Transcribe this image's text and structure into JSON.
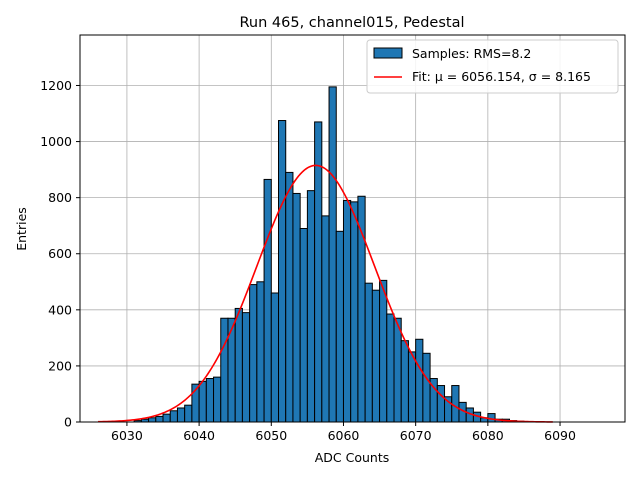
{
  "chart_data": {
    "type": "bar",
    "title": "Run 465, channel015, Pedestal",
    "xlabel": "ADC Counts",
    "ylabel": "Entries",
    "xlim": [
      6023.5,
      6099
    ],
    "ylim": [
      0,
      1380
    ],
    "xticks": [
      6030,
      6040,
      6050,
      6060,
      6070,
      6080,
      6090
    ],
    "yticks": [
      0,
      200,
      400,
      600,
      800,
      1000,
      1200
    ],
    "grid": true,
    "legend_position": "top-right",
    "bin_width": 1,
    "bins": [
      [
        6031,
        5
      ],
      [
        6032,
        10
      ],
      [
        6033,
        15
      ],
      [
        6034,
        20
      ],
      [
        6035,
        28
      ],
      [
        6036,
        40
      ],
      [
        6037,
        50
      ],
      [
        6038,
        60
      ],
      [
        6039,
        135
      ],
      [
        6040,
        145
      ],
      [
        6041,
        155
      ],
      [
        6042,
        160
      ],
      [
        6043,
        370
      ],
      [
        6044,
        370
      ],
      [
        6045,
        405
      ],
      [
        6046,
        390
      ],
      [
        6047,
        490
      ],
      [
        6048,
        500
      ],
      [
        6049,
        865
      ],
      [
        6050,
        460
      ],
      [
        6051,
        1075
      ],
      [
        6052,
        890
      ],
      [
        6053,
        815
      ],
      [
        6054,
        690
      ],
      [
        6055,
        825
      ],
      [
        6056,
        1070
      ],
      [
        6057,
        735
      ],
      [
        6058,
        1195
      ],
      [
        6059,
        680
      ],
      [
        6060,
        790
      ],
      [
        6061,
        785
      ],
      [
        6062,
        805
      ],
      [
        6063,
        495
      ],
      [
        6064,
        470
      ],
      [
        6065,
        505
      ],
      [
        6066,
        385
      ],
      [
        6067,
        370
      ],
      [
        6068,
        290
      ],
      [
        6069,
        250
      ],
      [
        6070,
        295
      ],
      [
        6071,
        245
      ],
      [
        6072,
        155
      ],
      [
        6073,
        130
      ],
      [
        6074,
        90
      ],
      [
        6075,
        130
      ],
      [
        6076,
        70
      ],
      [
        6077,
        50
      ],
      [
        6078,
        35
      ],
      [
        6079,
        15
      ],
      [
        6080,
        30
      ],
      [
        6081,
        10
      ],
      [
        6082,
        10
      ],
      [
        6083,
        5
      ],
      [
        6084,
        3
      ]
    ],
    "series": [
      {
        "name": "Samples: RMS=8.2",
        "kind": "histogram",
        "color": "#1f77b4",
        "edge": "#000000"
      },
      {
        "name": "Fit: μ = 6056.154, σ = 8.165",
        "kind": "gaussian",
        "color": "#ff0000",
        "mu": 6056.154,
        "sigma": 8.165,
        "amplitude": 915,
        "x_range": [
          6026,
          6089
        ]
      }
    ]
  }
}
